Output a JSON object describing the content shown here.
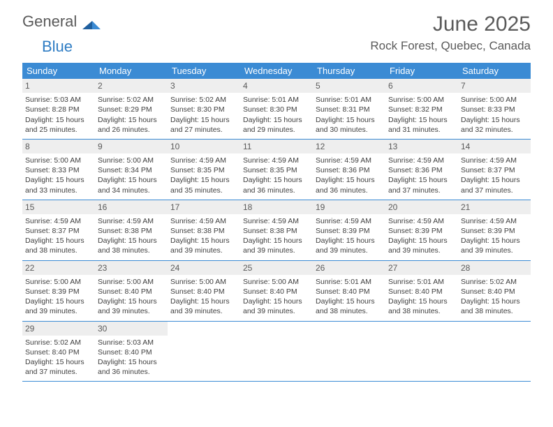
{
  "logo": {
    "text1": "General",
    "text2": "Blue"
  },
  "title": "June 2025",
  "location": "Rock Forest, Quebec, Canada",
  "colors": {
    "header_bg": "#3b8bd4",
    "header_text": "#ffffff",
    "daynum_bg": "#eeeeee",
    "text": "#404040",
    "logo_gray": "#5a5a5a",
    "logo_blue": "#2f7dc4",
    "border": "#3b8bd4",
    "background": "#ffffff"
  },
  "dayNames": [
    "Sunday",
    "Monday",
    "Tuesday",
    "Wednesday",
    "Thursday",
    "Friday",
    "Saturday"
  ],
  "weeks": [
    [
      {
        "n": "1",
        "sr": "Sunrise: 5:03 AM",
        "ss": "Sunset: 8:28 PM",
        "dl": "Daylight: 15 hours and 25 minutes."
      },
      {
        "n": "2",
        "sr": "Sunrise: 5:02 AM",
        "ss": "Sunset: 8:29 PM",
        "dl": "Daylight: 15 hours and 26 minutes."
      },
      {
        "n": "3",
        "sr": "Sunrise: 5:02 AM",
        "ss": "Sunset: 8:30 PM",
        "dl": "Daylight: 15 hours and 27 minutes."
      },
      {
        "n": "4",
        "sr": "Sunrise: 5:01 AM",
        "ss": "Sunset: 8:30 PM",
        "dl": "Daylight: 15 hours and 29 minutes."
      },
      {
        "n": "5",
        "sr": "Sunrise: 5:01 AM",
        "ss": "Sunset: 8:31 PM",
        "dl": "Daylight: 15 hours and 30 minutes."
      },
      {
        "n": "6",
        "sr": "Sunrise: 5:00 AM",
        "ss": "Sunset: 8:32 PM",
        "dl": "Daylight: 15 hours and 31 minutes."
      },
      {
        "n": "7",
        "sr": "Sunrise: 5:00 AM",
        "ss": "Sunset: 8:33 PM",
        "dl": "Daylight: 15 hours and 32 minutes."
      }
    ],
    [
      {
        "n": "8",
        "sr": "Sunrise: 5:00 AM",
        "ss": "Sunset: 8:33 PM",
        "dl": "Daylight: 15 hours and 33 minutes."
      },
      {
        "n": "9",
        "sr": "Sunrise: 5:00 AM",
        "ss": "Sunset: 8:34 PM",
        "dl": "Daylight: 15 hours and 34 minutes."
      },
      {
        "n": "10",
        "sr": "Sunrise: 4:59 AM",
        "ss": "Sunset: 8:35 PM",
        "dl": "Daylight: 15 hours and 35 minutes."
      },
      {
        "n": "11",
        "sr": "Sunrise: 4:59 AM",
        "ss": "Sunset: 8:35 PM",
        "dl": "Daylight: 15 hours and 36 minutes."
      },
      {
        "n": "12",
        "sr": "Sunrise: 4:59 AM",
        "ss": "Sunset: 8:36 PM",
        "dl": "Daylight: 15 hours and 36 minutes."
      },
      {
        "n": "13",
        "sr": "Sunrise: 4:59 AM",
        "ss": "Sunset: 8:36 PM",
        "dl": "Daylight: 15 hours and 37 minutes."
      },
      {
        "n": "14",
        "sr": "Sunrise: 4:59 AM",
        "ss": "Sunset: 8:37 PM",
        "dl": "Daylight: 15 hours and 37 minutes."
      }
    ],
    [
      {
        "n": "15",
        "sr": "Sunrise: 4:59 AM",
        "ss": "Sunset: 8:37 PM",
        "dl": "Daylight: 15 hours and 38 minutes."
      },
      {
        "n": "16",
        "sr": "Sunrise: 4:59 AM",
        "ss": "Sunset: 8:38 PM",
        "dl": "Daylight: 15 hours and 38 minutes."
      },
      {
        "n": "17",
        "sr": "Sunrise: 4:59 AM",
        "ss": "Sunset: 8:38 PM",
        "dl": "Daylight: 15 hours and 39 minutes."
      },
      {
        "n": "18",
        "sr": "Sunrise: 4:59 AM",
        "ss": "Sunset: 8:38 PM",
        "dl": "Daylight: 15 hours and 39 minutes."
      },
      {
        "n": "19",
        "sr": "Sunrise: 4:59 AM",
        "ss": "Sunset: 8:39 PM",
        "dl": "Daylight: 15 hours and 39 minutes."
      },
      {
        "n": "20",
        "sr": "Sunrise: 4:59 AM",
        "ss": "Sunset: 8:39 PM",
        "dl": "Daylight: 15 hours and 39 minutes."
      },
      {
        "n": "21",
        "sr": "Sunrise: 4:59 AM",
        "ss": "Sunset: 8:39 PM",
        "dl": "Daylight: 15 hours and 39 minutes."
      }
    ],
    [
      {
        "n": "22",
        "sr": "Sunrise: 5:00 AM",
        "ss": "Sunset: 8:39 PM",
        "dl": "Daylight: 15 hours and 39 minutes."
      },
      {
        "n": "23",
        "sr": "Sunrise: 5:00 AM",
        "ss": "Sunset: 8:40 PM",
        "dl": "Daylight: 15 hours and 39 minutes."
      },
      {
        "n": "24",
        "sr": "Sunrise: 5:00 AM",
        "ss": "Sunset: 8:40 PM",
        "dl": "Daylight: 15 hours and 39 minutes."
      },
      {
        "n": "25",
        "sr": "Sunrise: 5:00 AM",
        "ss": "Sunset: 8:40 PM",
        "dl": "Daylight: 15 hours and 39 minutes."
      },
      {
        "n": "26",
        "sr": "Sunrise: 5:01 AM",
        "ss": "Sunset: 8:40 PM",
        "dl": "Daylight: 15 hours and 38 minutes."
      },
      {
        "n": "27",
        "sr": "Sunrise: 5:01 AM",
        "ss": "Sunset: 8:40 PM",
        "dl": "Daylight: 15 hours and 38 minutes."
      },
      {
        "n": "28",
        "sr": "Sunrise: 5:02 AM",
        "ss": "Sunset: 8:40 PM",
        "dl": "Daylight: 15 hours and 38 minutes."
      }
    ],
    [
      {
        "n": "29",
        "sr": "Sunrise: 5:02 AM",
        "ss": "Sunset: 8:40 PM",
        "dl": "Daylight: 15 hours and 37 minutes."
      },
      {
        "n": "30",
        "sr": "Sunrise: 5:03 AM",
        "ss": "Sunset: 8:40 PM",
        "dl": "Daylight: 15 hours and 36 minutes."
      },
      null,
      null,
      null,
      null,
      null
    ]
  ]
}
